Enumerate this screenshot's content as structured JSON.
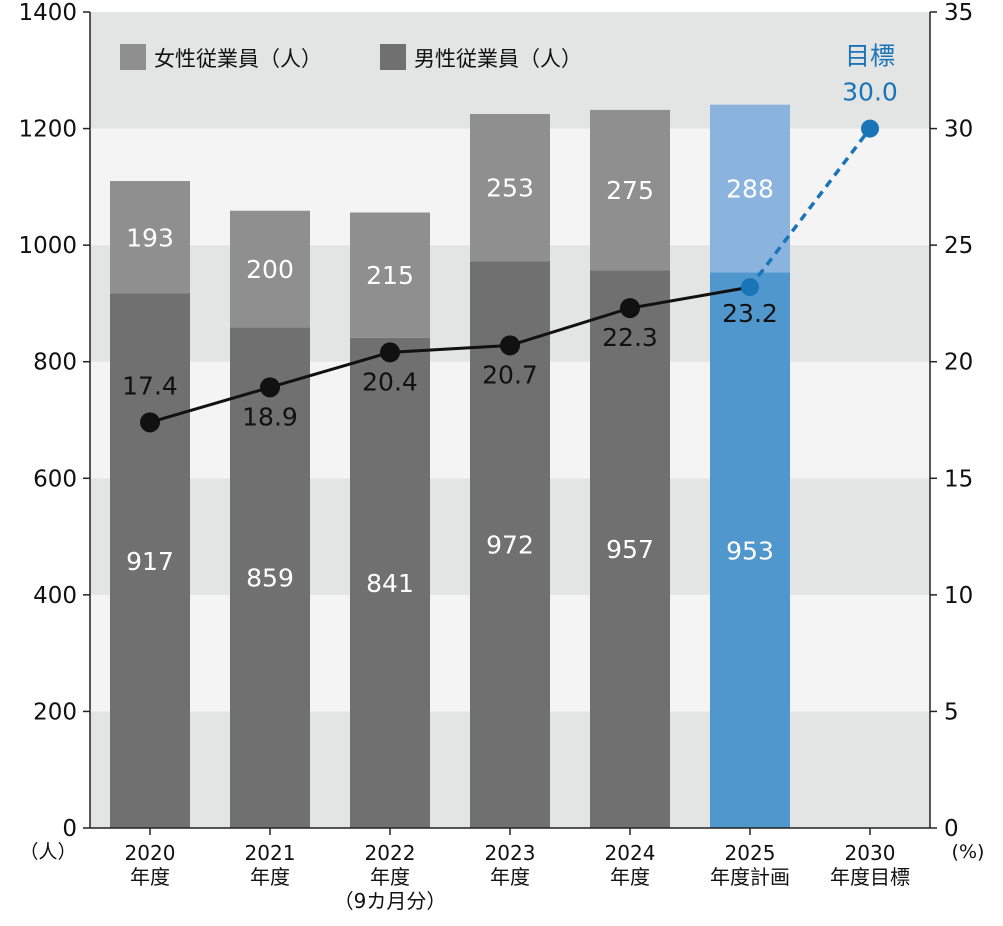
{
  "chart_data": {
    "type": "bar",
    "stacked": true,
    "categories": [
      [
        "2020",
        "年度"
      ],
      [
        "2021",
        "年度"
      ],
      [
        "2022",
        "年度",
        "（9カ月分）"
      ],
      [
        "2023",
        "年度"
      ],
      [
        "2024",
        "年度"
      ],
      [
        "2025",
        "年度計画"
      ],
      [
        "2030",
        "年度目標"
      ]
    ],
    "series": [
      {
        "name": "男性従業員（人）",
        "values": [
          917,
          859,
          841,
          972,
          957,
          953,
          null
        ],
        "color": "#707070",
        "plan_color": "#4f97cd"
      },
      {
        "name": "女性従業員（人）",
        "values": [
          193,
          200,
          215,
          253,
          275,
          288,
          null
        ],
        "color": "#8f8f8f",
        "plan_color": "#8ab4de"
      }
    ],
    "line_series": {
      "values": [
        17.4,
        18.9,
        20.4,
        20.7,
        22.3,
        23.2,
        30.0
      ],
      "labels": [
        "17.4",
        "18.9",
        "20.4",
        "20.7",
        "22.3",
        "23.2",
        "30.0"
      ],
      "color": "#111111",
      "target_color": "#1a74b8"
    },
    "target_label": "目標",
    "y_left": {
      "min": 0,
      "max": 1400,
      "ticks": [
        "0",
        "200",
        "400",
        "600",
        "800",
        "1000",
        "1200",
        "1400"
      ],
      "unit": "（人）"
    },
    "y_right": {
      "min": 0,
      "max": 35,
      "ticks": [
        "0",
        "5",
        "10",
        "15",
        "20",
        "25",
        "30",
        "35"
      ],
      "unit": "(%)"
    },
    "legend_position": "top-left",
    "grid": "alternating-bands"
  }
}
